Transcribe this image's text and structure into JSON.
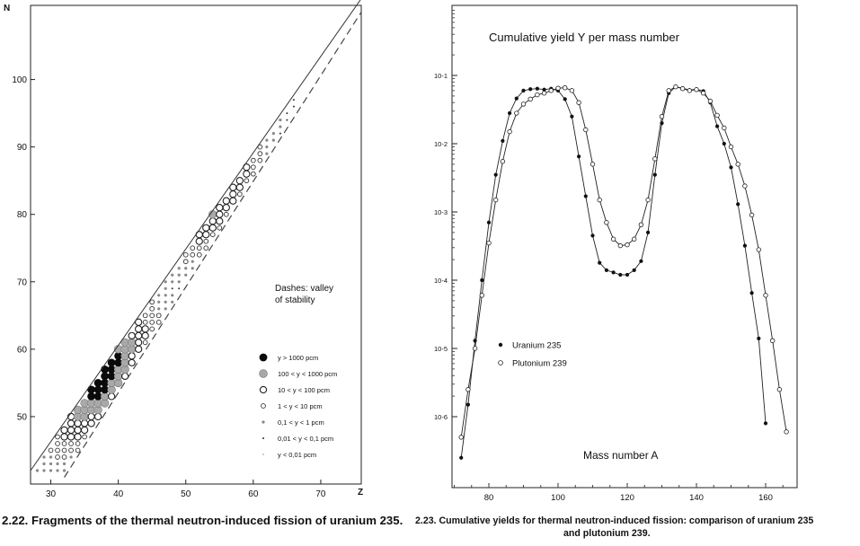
{
  "chart_data": [
    {
      "type": "scatter",
      "subtype": "nuclide-chart",
      "xlabel": "Z",
      "ylabel": "N",
      "xlim": [
        27,
        76
      ],
      "ylim": [
        40,
        111
      ],
      "x_ticks": [
        30,
        40,
        50,
        60,
        70
      ],
      "y_ticks": [
        50,
        60,
        70,
        80,
        90,
        100
      ],
      "annotation": "Dashes: valley of stability",
      "stability_line": [
        [
          32,
          41
        ],
        [
          76,
          110
        ]
      ],
      "diagonal_ridge": [
        [
          27,
          42
        ],
        [
          76,
          112
        ]
      ],
      "legend": [
        {
          "range": "y > 1000 pcm",
          "mark": "filled-large"
        },
        {
          "range": "100 < y < 1000 pcm",
          "mark": "gray-large"
        },
        {
          "range": "10 < y < 100 pcm",
          "mark": "open-large"
        },
        {
          "range": "1 < y < 10 pcm",
          "mark": "open-medium"
        },
        {
          "range": "0,1 < y < 1 pcm",
          "mark": "gray-small"
        },
        {
          "range": "0,01 < y < 0,1 pcm",
          "mark": "dot-small"
        },
        {
          "range": "y < 0,01 pcm",
          "mark": "dot-tiny"
        }
      ],
      "peaks": [
        {
          "z": 37.5,
          "n": 56,
          "sigma_along": 5.5,
          "sigma_across": 1.0
        },
        {
          "z": 53.5,
          "n": 84,
          "sigma_along": 5.5,
          "sigma_across": 1.0
        }
      ],
      "caption": "2.22. Fragments of the thermal neutron-induced fission of uranium 235."
    },
    {
      "type": "line",
      "title": "Cumulative yield Y per mass number",
      "xlabel": "Mass number A",
      "ylabel": "",
      "xlim": [
        68,
        168
      ],
      "ylim": [
        2e-07,
        0.3
      ],
      "yscale": "log",
      "x_ticks": [
        80,
        100,
        120,
        140,
        160
      ],
      "y_ticks": [
        {
          "value": 0.1,
          "label": "10-1"
        },
        {
          "value": 0.01,
          "label": "10-2"
        },
        {
          "value": 0.001,
          "label": "10-3"
        },
        {
          "value": 0.0001,
          "label": "10-4"
        },
        {
          "value": 1e-05,
          "label": "10-5"
        },
        {
          "value": 1e-06,
          "label": "10-6"
        }
      ],
      "series": [
        {
          "name": "Uranium 235",
          "marker": "filled",
          "x": [
            72,
            74,
            76,
            78,
            80,
            82,
            84,
            86,
            88,
            90,
            92,
            94,
            96,
            98,
            100,
            102,
            104,
            106,
            108,
            110,
            112,
            114,
            116,
            118,
            120,
            122,
            124,
            126,
            128,
            130,
            132,
            134,
            136,
            138,
            140,
            142,
            144,
            146,
            148,
            150,
            152,
            154,
            156,
            158,
            160
          ],
          "y": [
            2.5e-07,
            1.5e-06,
            1.3e-05,
            0.0001,
            0.0007,
            0.0035,
            0.011,
            0.028,
            0.046,
            0.06,
            0.063,
            0.064,
            0.062,
            0.064,
            0.06,
            0.045,
            0.025,
            0.0065,
            0.0017,
            0.00045,
            0.00018,
            0.00014,
            0.00013,
            0.00012,
            0.00012,
            0.00014,
            0.00019,
            0.0005,
            0.0035,
            0.02,
            0.055,
            0.068,
            0.065,
            0.061,
            0.063,
            0.059,
            0.04,
            0.018,
            0.01,
            0.0045,
            0.0013,
            0.00032,
            6.5e-05,
            1.4e-05,
            8e-07
          ]
        },
        {
          "name": "Plutonium 239",
          "marker": "open",
          "x": [
            72,
            74,
            76,
            78,
            80,
            82,
            84,
            86,
            88,
            90,
            92,
            94,
            96,
            98,
            100,
            102,
            104,
            106,
            108,
            110,
            112,
            114,
            116,
            118,
            120,
            122,
            124,
            126,
            128,
            130,
            132,
            134,
            136,
            138,
            140,
            142,
            144,
            146,
            148,
            150,
            152,
            154,
            156,
            158,
            160,
            162,
            164,
            166
          ],
          "y": [
            5e-07,
            2.5e-06,
            1e-05,
            6e-05,
            0.00035,
            0.0015,
            0.0055,
            0.015,
            0.028,
            0.038,
            0.045,
            0.052,
            0.055,
            0.06,
            0.065,
            0.066,
            0.06,
            0.04,
            0.016,
            0.005,
            0.0015,
            0.0007,
            0.0004,
            0.00032,
            0.00033,
            0.0004,
            0.00065,
            0.0015,
            0.006,
            0.025,
            0.06,
            0.068,
            0.064,
            0.06,
            0.062,
            0.055,
            0.042,
            0.026,
            0.017,
            0.009,
            0.005,
            0.0024,
            0.0009,
            0.00028,
            6e-05,
            1.3e-05,
            2.5e-06,
            6e-07
          ]
        }
      ],
      "caption_line1": "2.23. Cumulative yields for thermal neutron-induced fission: comparison of uranium 235",
      "caption_line2": "and plutonium 239."
    }
  ]
}
